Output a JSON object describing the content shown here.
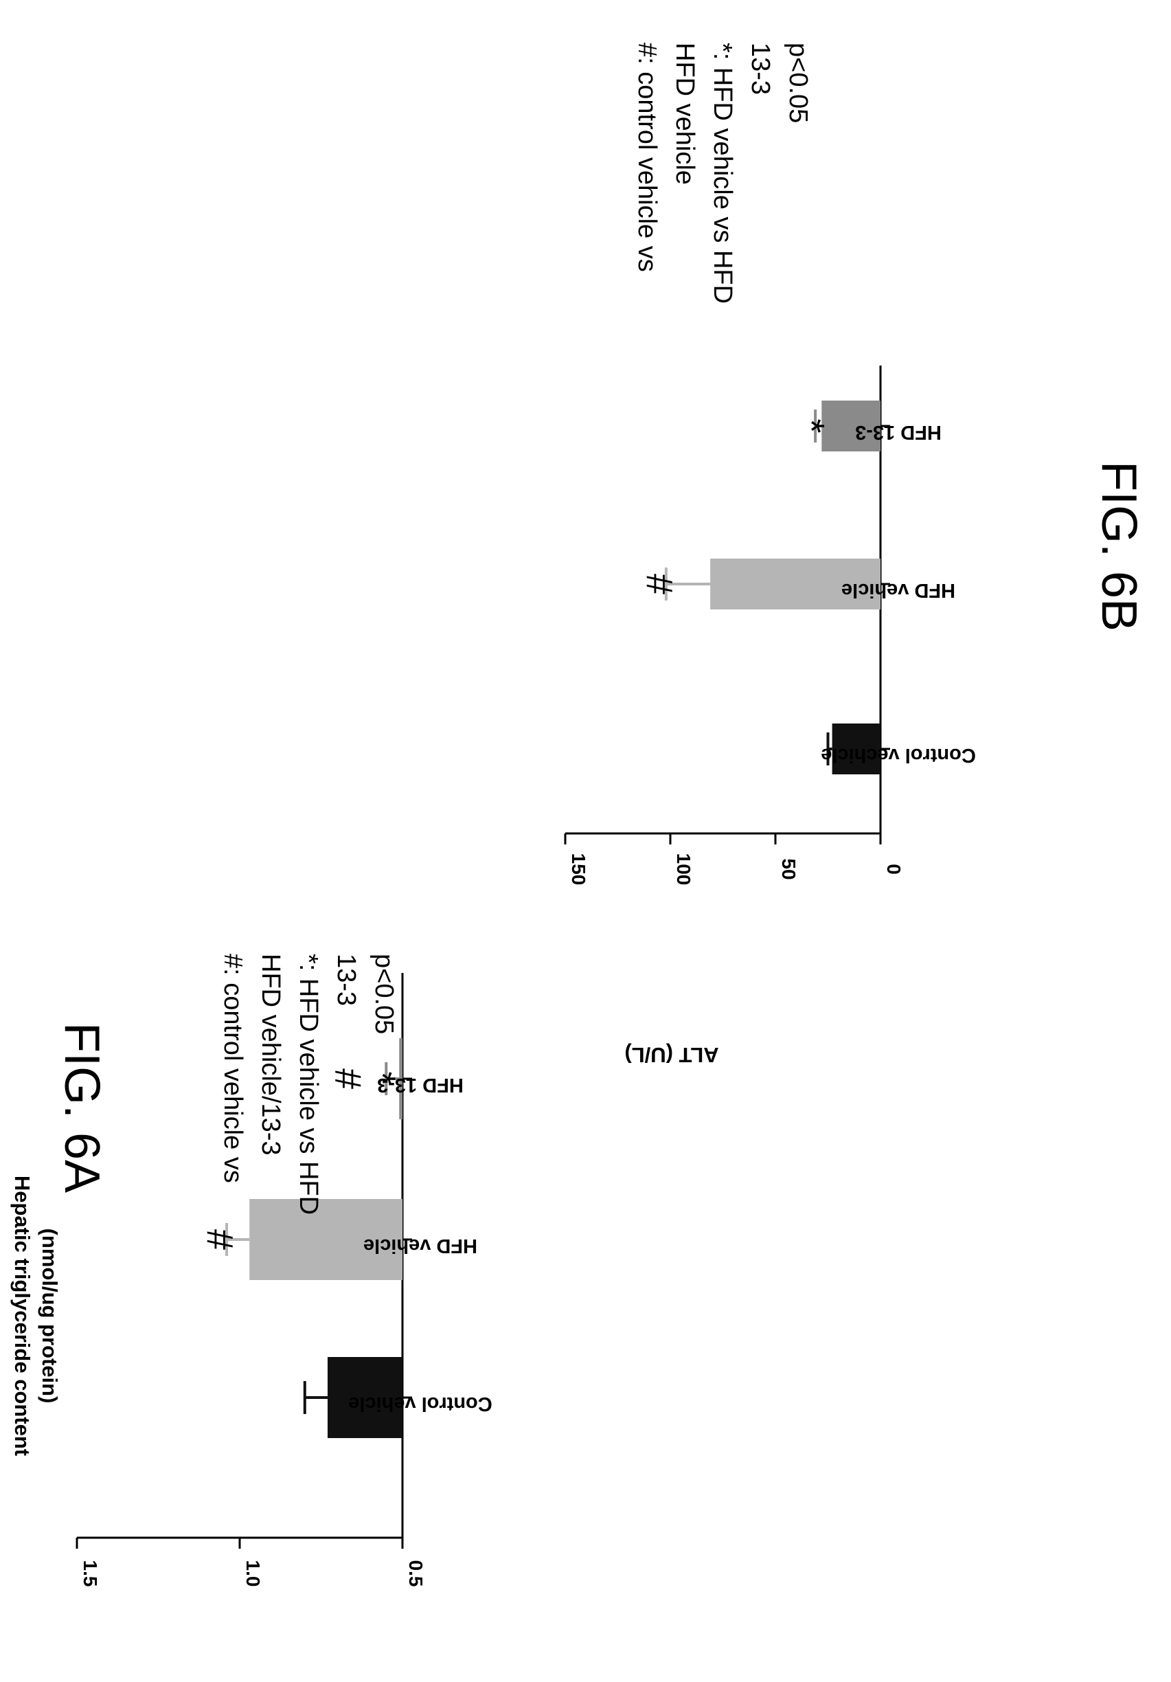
{
  "chart_data": [
    {
      "type": "bar",
      "figure_label": "FIG. 6A",
      "ylabel_lines": [
        "Hepatic triglyceride content",
        "(nmol/ug protein)"
      ],
      "ylim": [
        0.5,
        1.5
      ],
      "yticks": [
        "1.5",
        "1.0",
        "0.5"
      ],
      "ytick_values": [
        1.5,
        1.0,
        0.5
      ],
      "categories": [
        "Control vehicle",
        "HFD vehicle",
        "HFD 13-3"
      ],
      "values": [
        0.73,
        0.97,
        0.51
      ],
      "errors": [
        0.07,
        0.07,
        0.04
      ],
      "bar_colors": [
        "#111111",
        "#b5b5b5",
        "#8a8a8a"
      ],
      "error_colors": [
        "#111111",
        "#b5b5b5",
        "#8a8a8a"
      ],
      "marks": [
        "",
        "#",
        "#\n*"
      ],
      "legend_lines": [
        "#: control vehicle vs",
        "HFD vehicle/13-3",
        "*: HFD vehicle vs HFD",
        "13-3",
        "p<0.05"
      ],
      "grid": false
    },
    {
      "type": "bar",
      "figure_label": "FIG. 6B",
      "ylabel_lines": [
        "ALT (U/L)"
      ],
      "ylim": [
        0,
        150
      ],
      "yticks": [
        "150",
        "100",
        "50",
        "0"
      ],
      "ytick_values": [
        150,
        100,
        50,
        0
      ],
      "categories": [
        "Control vechicle",
        "HFD vehicle",
        "HFD 13-3"
      ],
      "values": [
        23,
        81,
        28
      ],
      "errors": [
        2,
        21,
        3
      ],
      "bar_colors": [
        "#111111",
        "#b5b5b5",
        "#8a8a8a"
      ],
      "error_colors": [
        "#111111",
        "#b5b5b5",
        "#8a8a8a"
      ],
      "marks": [
        "",
        "#",
        "*"
      ],
      "legend_lines": [
        "#: control vehicle vs",
        "HFD vehicle",
        "*: HFD vehicle vs HFD",
        "13-3",
        "p<0.05"
      ],
      "grid": false
    }
  ]
}
